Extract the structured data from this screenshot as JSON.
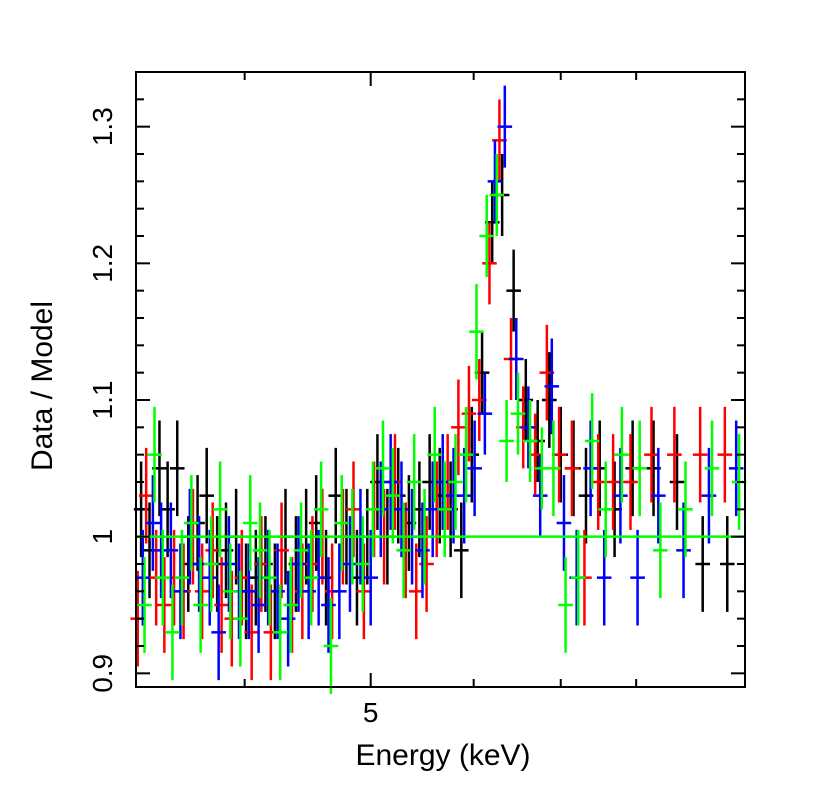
{
  "chart_data": {
    "type": "scatter",
    "title": "",
    "xlabel": "Energy (keV)",
    "ylabel": "Data / Model",
    "x_scale": "log",
    "xlim": [
      3.3,
      9.7
    ],
    "ylim": [
      0.89,
      1.34
    ],
    "x_tick_labels": [
      {
        "value": 5,
        "label": "5"
      }
    ],
    "x_minor_ticks": [
      4,
      6,
      7,
      8
    ],
    "y_tick_labels": [
      {
        "value": 0.9,
        "label": "0.9"
      },
      {
        "value": 1.0,
        "label": "1"
      },
      {
        "value": 1.1,
        "label": "1.1"
      },
      {
        "value": 1.2,
        "label": "1.2"
      },
      {
        "value": 1.3,
        "label": "1.3"
      }
    ],
    "reference_line": {
      "y": 1.0,
      "color": "#00ff00"
    },
    "series": [
      {
        "name": "black",
        "color": "#000000",
        "x": [
          3.33,
          3.38,
          3.44,
          3.49,
          3.55,
          3.62,
          3.68,
          3.74,
          3.81,
          3.87,
          3.94,
          4.01,
          4.08,
          4.15,
          4.22,
          4.3,
          4.38,
          4.46,
          4.54,
          4.62,
          4.7,
          4.79,
          4.88,
          4.97,
          5.06,
          5.15,
          5.25,
          5.35,
          5.45,
          5.55,
          5.65,
          5.76,
          5.87,
          5.98,
          6.09,
          6.2,
          6.31,
          6.44,
          6.58,
          6.72,
          6.86,
          7.0,
          7.16,
          7.32,
          7.5,
          7.7,
          7.95,
          8.25,
          8.6,
          9.0,
          9.4
        ],
        "y": [
          1.02,
          0.99,
          1.05,
          1.02,
          1.05,
          0.98,
          1.01,
          1.03,
          0.98,
          0.99,
          1.0,
          0.96,
          0.97,
          0.98,
          0.96,
          1.0,
          0.98,
          1.0,
          1.01,
          0.97,
          1.03,
          1.0,
          0.97,
          1.0,
          1.04,
          1.0,
          1.03,
          1.01,
          1.02,
          1.04,
          1.03,
          1.02,
          0.99,
          1.06,
          1.12,
          1.23,
          1.25,
          1.18,
          1.1,
          1.07,
          1.1,
          1.06,
          1.05,
          1.03,
          1.05,
          1.02,
          1.05,
          1.05,
          1.04,
          0.98,
          0.98
        ],
        "err": [
          0.035,
          0.035,
          0.035,
          0.035,
          0.035,
          0.035,
          0.035,
          0.035,
          0.035,
          0.035,
          0.035,
          0.035,
          0.035,
          0.035,
          0.035,
          0.035,
          0.035,
          0.035,
          0.035,
          0.035,
          0.035,
          0.035,
          0.035,
          0.035,
          0.035,
          0.035,
          0.035,
          0.035,
          0.035,
          0.035,
          0.035,
          0.035,
          0.035,
          0.035,
          0.03,
          0.03,
          0.03,
          0.03,
          0.03,
          0.03,
          0.035,
          0.035,
          0.035,
          0.035,
          0.035,
          0.035,
          0.035,
          0.035,
          0.035,
          0.035,
          0.035
        ]
      },
      {
        "name": "red",
        "color": "#ff0000",
        "x": [
          3.31,
          3.36,
          3.42,
          3.47,
          3.53,
          3.59,
          3.65,
          3.71,
          3.78,
          3.84,
          3.91,
          3.98,
          4.05,
          4.12,
          4.19,
          4.27,
          4.35,
          4.43,
          4.51,
          4.59,
          4.67,
          4.76,
          4.85,
          4.94,
          5.03,
          5.12,
          5.22,
          5.32,
          5.42,
          5.52,
          5.62,
          5.73,
          5.84,
          5.95,
          6.06,
          6.17,
          6.28,
          6.41,
          6.55,
          6.69,
          6.83,
          6.98,
          7.14,
          7.3,
          7.48,
          7.68,
          7.92,
          8.22,
          8.56,
          8.96,
          9.36
        ],
        "y": [
          0.94,
          1.03,
          0.97,
          0.95,
          0.97,
          0.96,
          1.0,
          0.96,
          0.99,
          0.95,
          0.94,
          0.97,
          0.93,
          0.98,
          0.93,
          0.99,
          0.95,
          0.96,
          0.98,
          1.0,
          0.96,
          1.0,
          1.02,
          0.96,
          1.02,
          1.0,
          1.04,
          0.99,
          0.96,
          0.98,
          1.02,
          1.04,
          1.08,
          1.09,
          1.1,
          1.2,
          1.29,
          1.13,
          1.08,
          1.06,
          1.12,
          1.06,
          1.05,
          0.97,
          1.04,
          1.04,
          1.04,
          1.06,
          1.06,
          1.06,
          1.06
        ],
        "err": [
          0.035,
          0.035,
          0.035,
          0.035,
          0.035,
          0.035,
          0.035,
          0.035,
          0.035,
          0.035,
          0.035,
          0.035,
          0.035,
          0.035,
          0.035,
          0.035,
          0.035,
          0.035,
          0.035,
          0.035,
          0.035,
          0.035,
          0.035,
          0.035,
          0.035,
          0.035,
          0.035,
          0.035,
          0.035,
          0.035,
          0.035,
          0.035,
          0.035,
          0.035,
          0.03,
          0.03,
          0.03,
          0.03,
          0.03,
          0.03,
          0.035,
          0.035,
          0.035,
          0.035,
          0.035,
          0.035,
          0.035,
          0.035,
          0.035,
          0.035,
          0.035
        ]
      },
      {
        "name": "blue",
        "color": "#0000ff",
        "x": [
          3.34,
          3.4,
          3.45,
          3.51,
          3.57,
          3.63,
          3.69,
          3.76,
          3.82,
          3.89,
          3.96,
          4.03,
          4.1,
          4.17,
          4.24,
          4.32,
          4.4,
          4.48,
          4.56,
          4.64,
          4.73,
          4.82,
          4.91,
          5.0,
          5.09,
          5.18,
          5.28,
          5.38,
          5.48,
          5.58,
          5.68,
          5.79,
          5.9,
          6.01,
          6.12,
          6.23,
          6.34,
          6.47,
          6.61,
          6.75,
          6.89,
          7.04,
          7.2,
          7.38,
          7.56,
          7.78,
          8.02,
          8.32,
          8.7,
          9.1,
          9.55
        ],
        "y": [
          0.97,
          1.01,
          0.99,
          0.99,
          0.96,
          1.0,
          0.98,
          0.97,
          0.93,
          0.98,
          0.96,
          0.96,
          0.95,
          0.97,
          0.96,
          0.94,
          0.98,
          0.96,
          0.97,
          0.95,
          0.96,
          0.98,
          1.0,
          0.97,
          1.02,
          1.04,
          1.02,
          1.0,
          0.99,
          1.02,
          1.04,
          1.03,
          1.03,
          1.05,
          1.09,
          1.26,
          1.3,
          1.13,
          1.08,
          1.03,
          1.11,
          1.01,
          0.97,
          1.05,
          0.97,
          1.03,
          0.97,
          1.03,
          0.99,
          1.03,
          1.05
        ],
        "err": [
          0.035,
          0.035,
          0.035,
          0.035,
          0.035,
          0.035,
          0.035,
          0.035,
          0.035,
          0.035,
          0.035,
          0.035,
          0.035,
          0.035,
          0.035,
          0.035,
          0.035,
          0.035,
          0.035,
          0.035,
          0.035,
          0.035,
          0.035,
          0.035,
          0.035,
          0.035,
          0.035,
          0.035,
          0.035,
          0.035,
          0.035,
          0.035,
          0.035,
          0.035,
          0.03,
          0.03,
          0.03,
          0.03,
          0.03,
          0.03,
          0.035,
          0.035,
          0.035,
          0.035,
          0.035,
          0.035,
          0.035,
          0.035,
          0.035,
          0.035,
          0.035
        ]
      },
      {
        "name": "green",
        "color": "#00ff00",
        "x": [
          3.35,
          3.41,
          3.46,
          3.52,
          3.58,
          3.64,
          3.7,
          3.77,
          3.83,
          3.9,
          3.97,
          4.04,
          4.11,
          4.18,
          4.26,
          4.34,
          4.42,
          4.5,
          4.58,
          4.66,
          4.75,
          4.84,
          4.93,
          5.02,
          5.11,
          5.2,
          5.3,
          5.4,
          5.5,
          5.6,
          5.7,
          5.81,
          5.92,
          6.03,
          6.14,
          6.25,
          6.36,
          6.49,
          6.63,
          6.77,
          6.91,
          7.06,
          7.22,
          7.4,
          7.58,
          7.8,
          8.05,
          8.35,
          8.73,
          9.15,
          9.6
        ],
        "y": [
          0.95,
          1.06,
          0.97,
          0.93,
          0.97,
          1.01,
          0.95,
          0.98,
          1.02,
          0.96,
          0.94,
          1.01,
          0.99,
          0.97,
          0.93,
          0.95,
          0.99,
          0.97,
          1.02,
          0.92,
          1.01,
          1.0,
          0.98,
          1.02,
          1.05,
          1.03,
          0.99,
          1.04,
          1.0,
          1.06,
          1.02,
          1.04,
          1.06,
          1.15,
          1.22,
          1.25,
          1.07,
          1.09,
          1.07,
          1.05,
          1.05,
          0.95,
          0.97,
          1.07,
          1.02,
          1.06,
          1.05,
          0.99,
          1.02,
          1.05,
          1.04
        ],
        "err": [
          0.035,
          0.035,
          0.035,
          0.035,
          0.035,
          0.035,
          0.035,
          0.035,
          0.035,
          0.035,
          0.035,
          0.035,
          0.035,
          0.035,
          0.035,
          0.035,
          0.035,
          0.035,
          0.035,
          0.035,
          0.035,
          0.035,
          0.035,
          0.035,
          0.035,
          0.035,
          0.035,
          0.035,
          0.035,
          0.035,
          0.035,
          0.035,
          0.035,
          0.035,
          0.03,
          0.03,
          0.03,
          0.03,
          0.03,
          0.03,
          0.035,
          0.035,
          0.035,
          0.035,
          0.035,
          0.035,
          0.035,
          0.035,
          0.035,
          0.035,
          0.035
        ]
      }
    ]
  }
}
